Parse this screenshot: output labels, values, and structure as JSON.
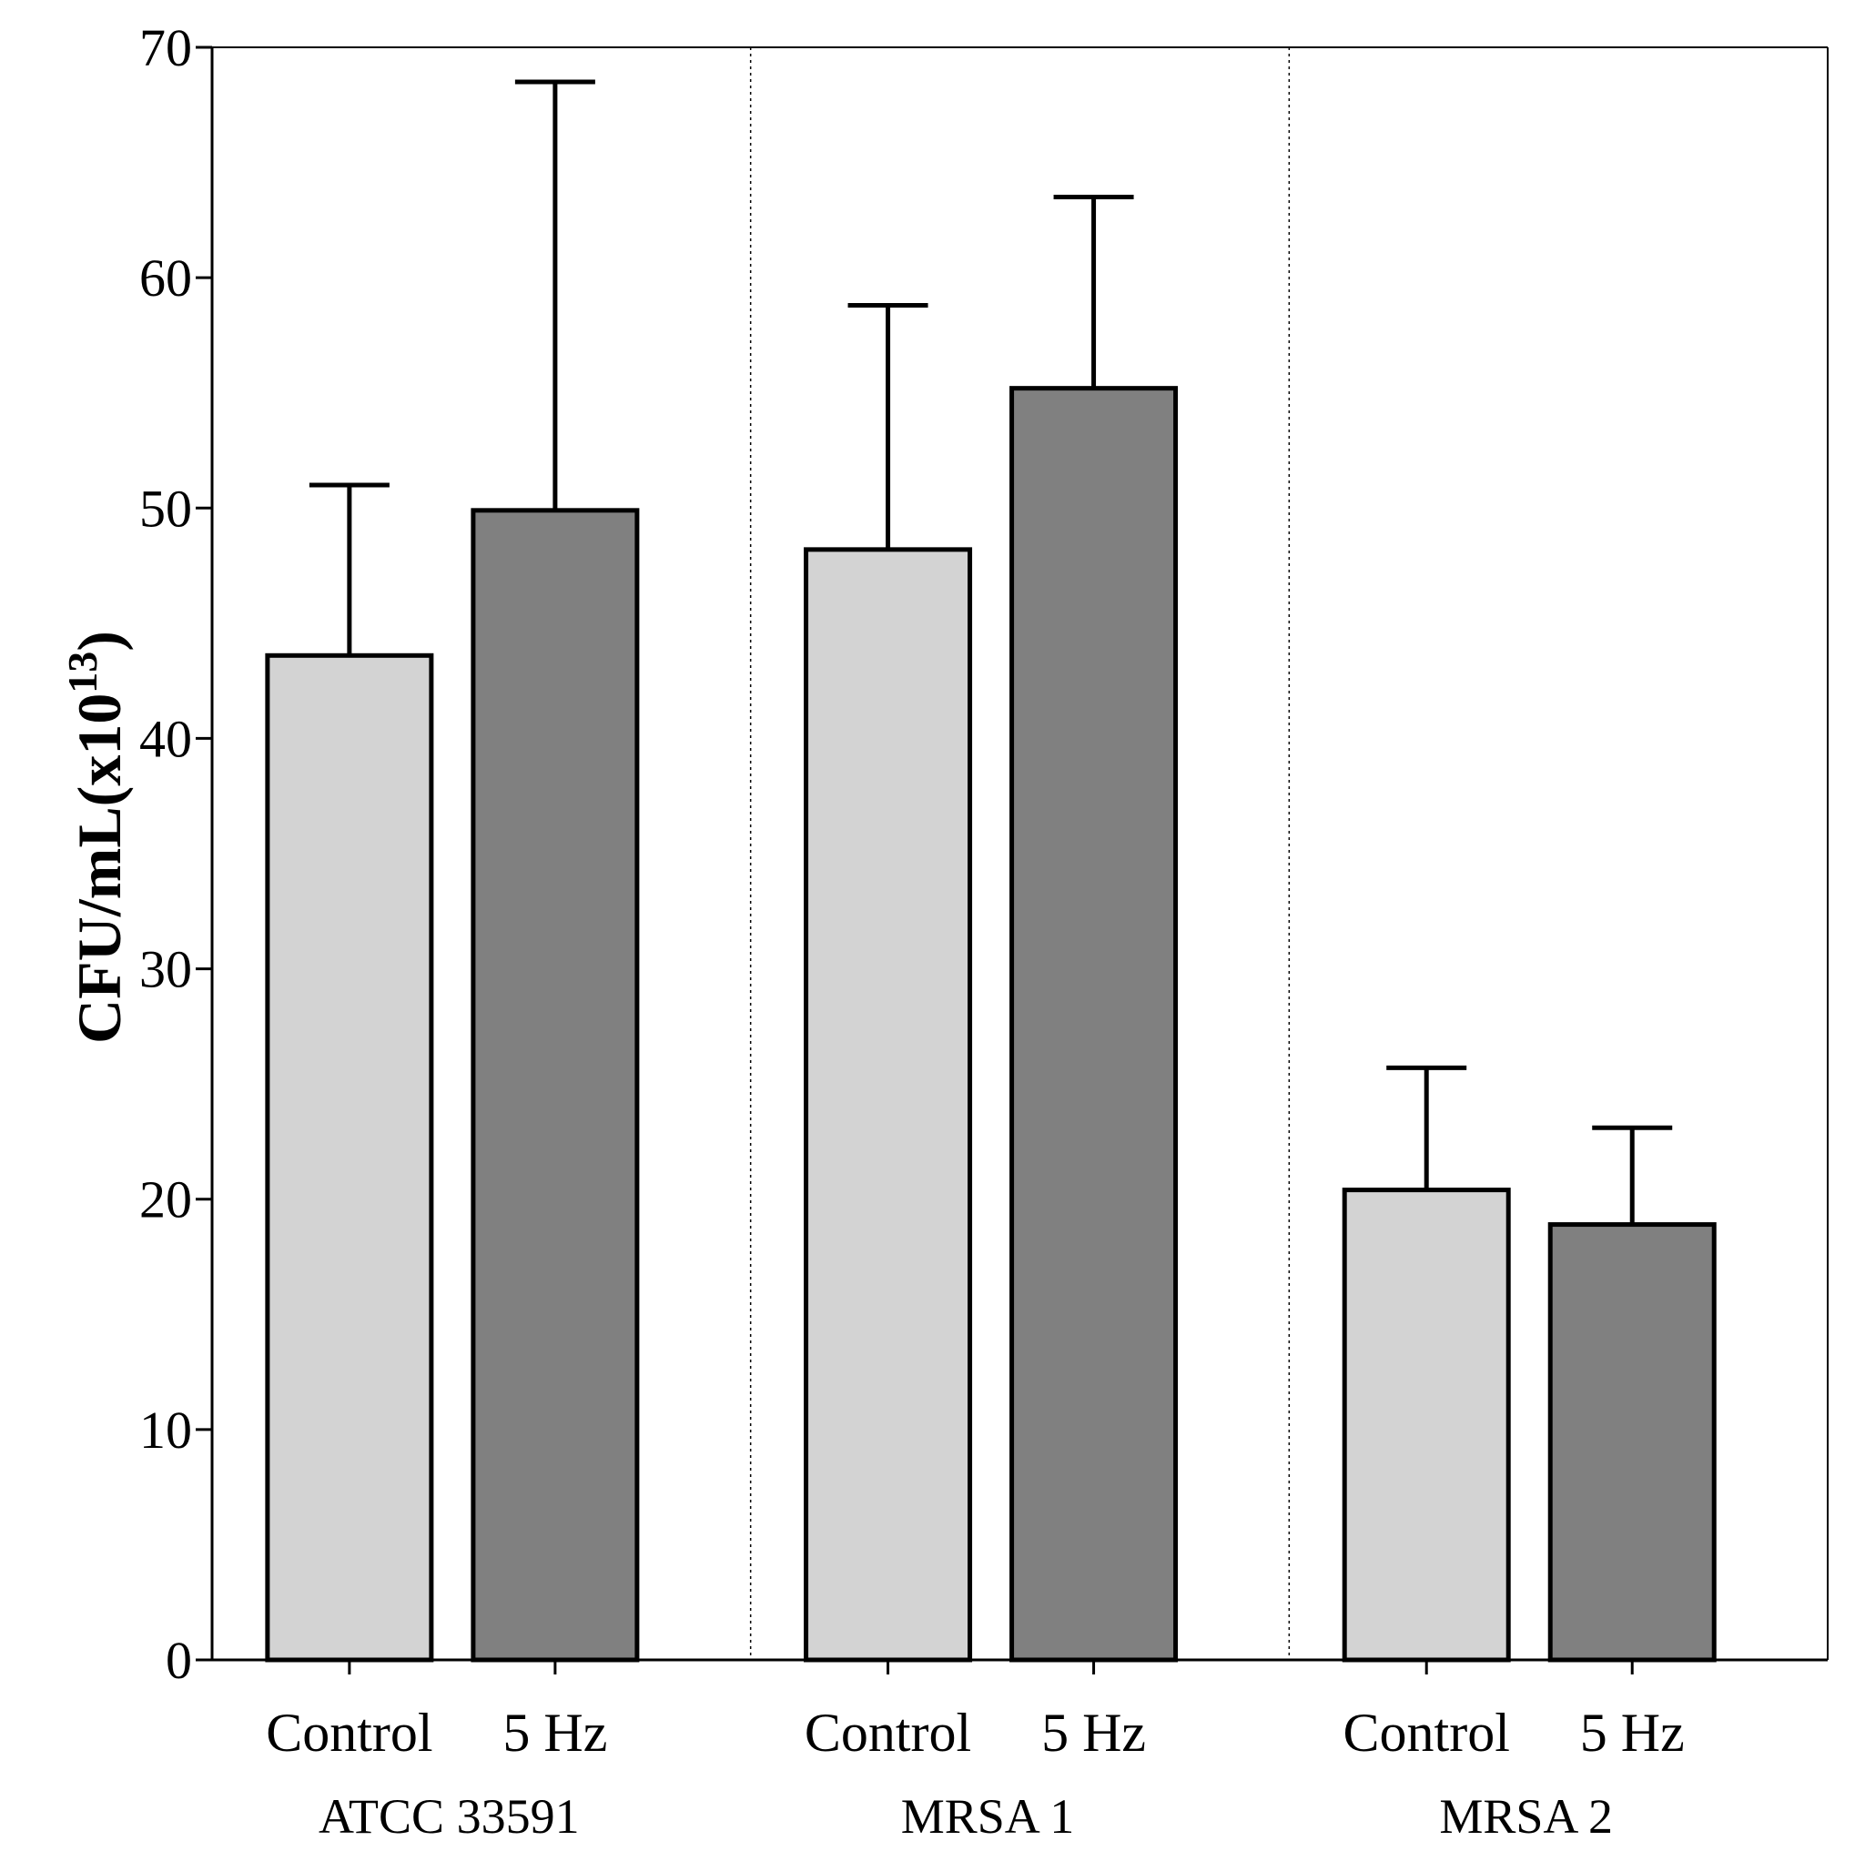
{
  "chart_data": {
    "type": "bar",
    "title": "",
    "xlabel": "",
    "ylabel": {
      "base": "CFU/mL(x10",
      "exponent": "13",
      "close": ")"
    },
    "ylim": [
      0,
      70
    ],
    "yticks": [
      "0",
      "10",
      "20",
      "30",
      "40",
      "50",
      "60",
      "70"
    ],
    "grid": false,
    "groups": [
      {
        "name": "ATCC 33591",
        "categories": [
          "Control",
          "5 Hz"
        ],
        "values": [
          43.6,
          49.9
        ],
        "errors": [
          7.4,
          18.6
        ]
      },
      {
        "name": "MRSA 1",
        "categories": [
          "Control",
          "5 Hz"
        ],
        "values": [
          48.2,
          55.2
        ],
        "errors": [
          10.6,
          8.3
        ]
      },
      {
        "name": "MRSA 2",
        "categories": [
          "Control",
          "5 Hz"
        ],
        "values": [
          20.4,
          18.9
        ],
        "errors": [
          5.3,
          4.2
        ]
      }
    ],
    "series_colors": {
      "Control": "#d3d3d3",
      "5 Hz": "#808080"
    },
    "outline_color": "#000000"
  }
}
